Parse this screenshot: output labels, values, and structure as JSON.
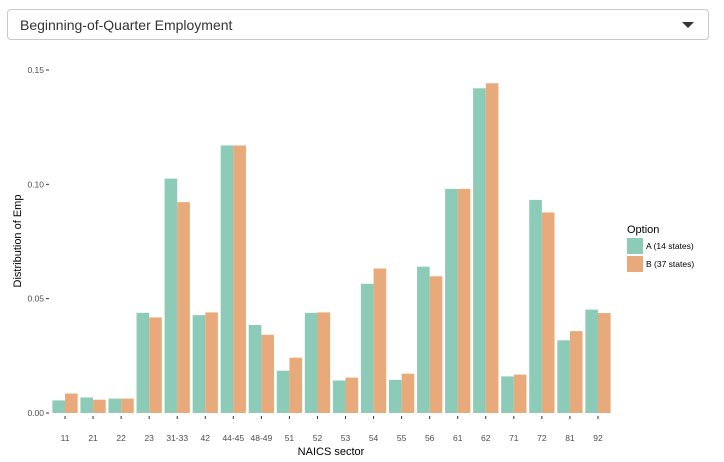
{
  "selector": {
    "selected": "Beginning-of-Quarter Employment",
    "caret_icon": "caret-down-icon"
  },
  "chart_data": {
    "type": "bar",
    "xlabel": "NAICS sector",
    "ylabel": "Distribution of Emp",
    "ylim": [
      0,
      0.15
    ],
    "yticks": [
      "0.00",
      "0.05",
      "0.10",
      "0.15"
    ],
    "grid": false,
    "legend": {
      "title": "Option",
      "position": "right"
    },
    "categories": [
      "11",
      "21",
      "22",
      "23",
      "31-33",
      "42",
      "44-45",
      "48-49",
      "51",
      "52",
      "53",
      "54",
      "55",
      "56",
      "61",
      "62",
      "71",
      "72",
      "81",
      "92"
    ],
    "series": [
      {
        "name": "A (14 states)",
        "color": "#8ccbb7",
        "values": [
          0.0055,
          0.0068,
          0.0063,
          0.0438,
          0.1025,
          0.0428,
          0.117,
          0.0385,
          0.0185,
          0.0438,
          0.0142,
          0.0565,
          0.0145,
          0.064,
          0.098,
          0.142,
          0.016,
          0.0932,
          0.0318,
          0.0452
        ]
      },
      {
        "name": "B (37 states)",
        "color": "#e9aa7b",
        "values": [
          0.0085,
          0.0058,
          0.0063,
          0.0418,
          0.0922,
          0.044,
          0.117,
          0.0342,
          0.0242,
          0.044,
          0.0155,
          0.0632,
          0.0172,
          0.0598,
          0.098,
          0.1442,
          0.0168,
          0.0877,
          0.0358,
          0.0437
        ]
      }
    ]
  }
}
